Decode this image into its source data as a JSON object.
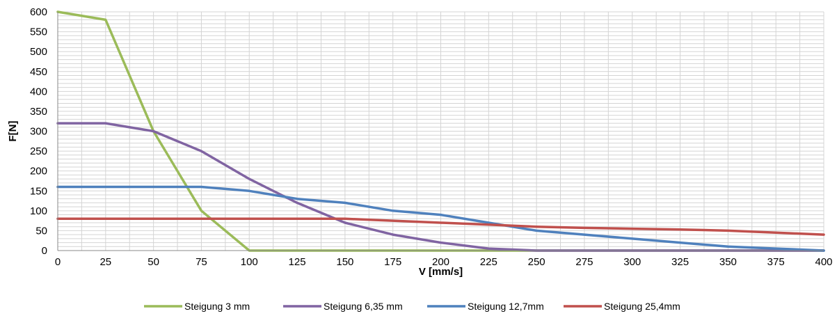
{
  "chart_data": {
    "type": "line",
    "xlabel": "V [mm/s]",
    "ylabel": "F[N]",
    "xlim": [
      0,
      400
    ],
    "ylim": [
      0,
      600
    ],
    "x_ticks": [
      0,
      25,
      50,
      75,
      100,
      125,
      150,
      175,
      200,
      225,
      250,
      275,
      300,
      325,
      350,
      375,
      400
    ],
    "y_ticks": [
      0,
      50,
      100,
      150,
      200,
      250,
      300,
      350,
      400,
      450,
      500,
      550,
      600
    ],
    "grid": true,
    "legend_position": "bottom",
    "series": [
      {
        "name": "Steigung 3 mm",
        "color": "#9bbb59",
        "x": [
          0,
          25,
          50,
          75,
          100,
          125,
          150,
          175,
          200,
          225,
          250,
          275,
          300,
          325,
          350,
          375,
          400
        ],
        "y": [
          600,
          580,
          300,
          100,
          0,
          0,
          0,
          0,
          0,
          0,
          0,
          0,
          0,
          0,
          0,
          0,
          0
        ]
      },
      {
        "name": "Steigung 6,35 mm",
        "color": "#8064a2",
        "x": [
          0,
          25,
          50,
          75,
          100,
          125,
          150,
          175,
          200,
          225,
          250,
          275,
          300,
          325,
          350,
          375,
          400
        ],
        "y": [
          320,
          320,
          300,
          250,
          180,
          120,
          70,
          40,
          20,
          5,
          0,
          0,
          0,
          0,
          0,
          0,
          0
        ]
      },
      {
        "name": "Steigung 12,7mm",
        "color": "#4f81bd",
        "x": [
          0,
          25,
          50,
          75,
          100,
          125,
          150,
          175,
          200,
          225,
          250,
          275,
          300,
          325,
          350,
          375,
          400
        ],
        "y": [
          160,
          160,
          160,
          160,
          150,
          130,
          120,
          100,
          90,
          70,
          50,
          40,
          30,
          20,
          10,
          5,
          0
        ]
      },
      {
        "name": "Steigung 25,4mm",
        "color": "#c0504d",
        "x": [
          0,
          25,
          50,
          75,
          100,
          125,
          150,
          175,
          200,
          225,
          250,
          275,
          300,
          325,
          350,
          375,
          400
        ],
        "y": [
          80,
          80,
          80,
          80,
          80,
          80,
          80,
          75,
          70,
          65,
          60,
          57,
          55,
          53,
          50,
          45,
          40
        ]
      }
    ]
  }
}
